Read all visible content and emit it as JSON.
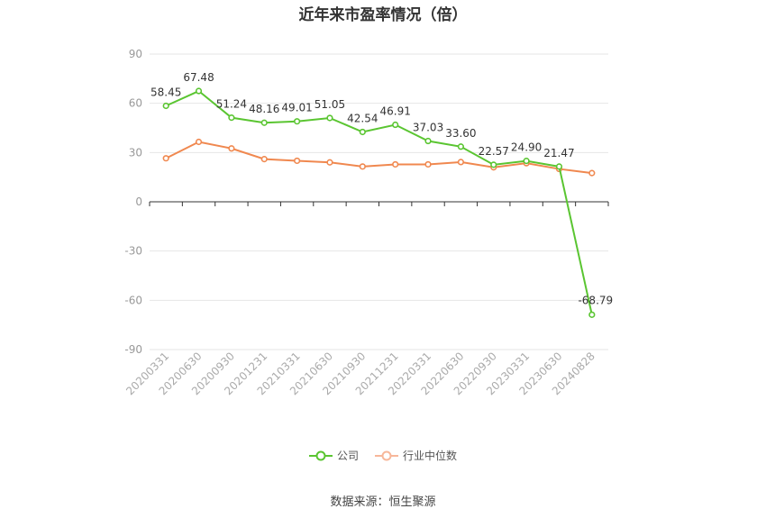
{
  "chart_data": {
    "type": "line",
    "title": "近年来市盈率情况（倍）",
    "categories": [
      "20200331",
      "20200630",
      "20200930",
      "20201231",
      "20210331",
      "20210630",
      "20210930",
      "20211231",
      "20220331",
      "20220630",
      "20220930",
      "20230331",
      "20230630",
      "20240828"
    ],
    "ylim": [
      -90,
      90
    ],
    "yticks": [
      90,
      60,
      30,
      0,
      -30,
      -60,
      -90
    ],
    "grid": true,
    "legend_position": "bottom",
    "series": [
      {
        "name": "公司",
        "color": "#5ac531",
        "values": [
          58.45,
          67.48,
          51.24,
          48.16,
          49.01,
          51.05,
          42.54,
          46.91,
          37.03,
          33.6,
          22.57,
          24.9,
          21.47,
          -68.79
        ],
        "labels": [
          "58.45",
          "67.48",
          "51.24",
          "48.16",
          "49.01",
          "51.05",
          "42.54",
          "46.91",
          "37.03",
          "33.60",
          "22.57",
          "24.90",
          "21.47",
          "-68.79"
        ]
      },
      {
        "name": "行业中位数",
        "color": "#f0884f",
        "values": [
          26.5,
          36.5,
          32.5,
          26.0,
          25.0,
          24.0,
          21.5,
          22.8,
          22.8,
          24.2,
          21.0,
          23.5,
          20.0,
          17.5
        ]
      }
    ],
    "source": "数据来源：恒生聚源"
  }
}
